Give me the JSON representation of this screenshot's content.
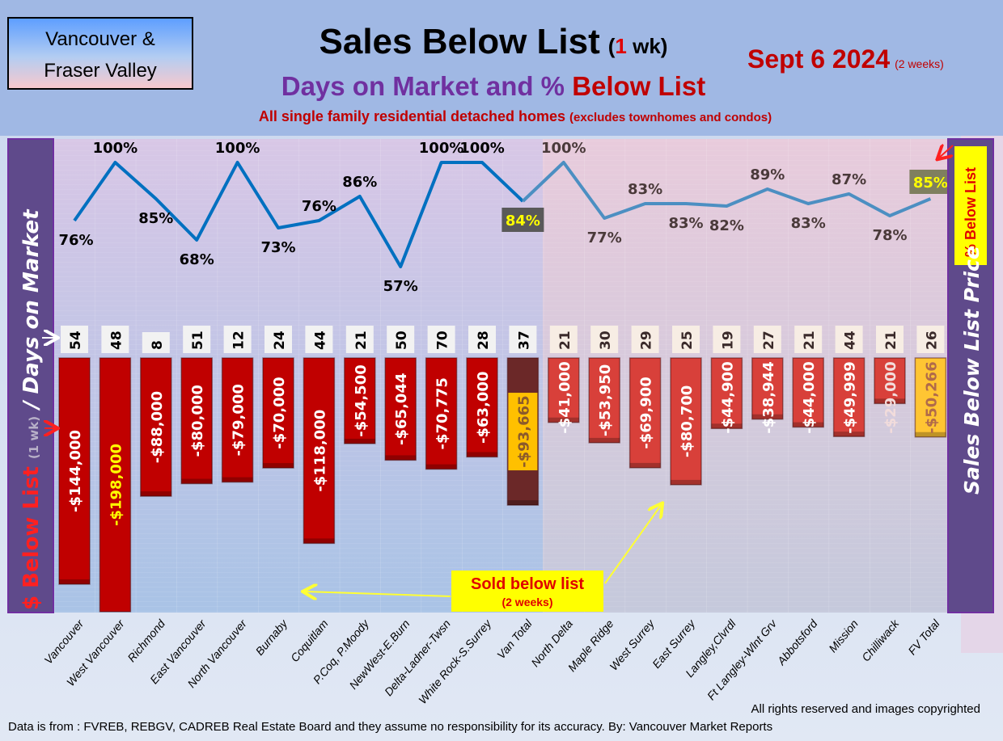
{
  "header": {
    "region_line1": "Vancouver &",
    "region_line2": "Fraser Valley",
    "title": "Sales Below List",
    "title_paren_open": "(",
    "title_period_num": "1",
    "title_period_unit": " wk)",
    "date": "Sept 6  2024",
    "date_note": "(2 weeks)",
    "subtitle_part1": "Days on Market and % ",
    "subtitle_part2": "Below List",
    "description_main": "All single family residential detached homes ",
    "description_note": "(excludes townhomes and condos)"
  },
  "left_axis": {
    "part1": "$ Below List ",
    "part2": "(1 wk)",
    "part3": " / Days on Market"
  },
  "right_axis": {
    "title": "Sales Below List Price",
    "pct_label": "% Below List"
  },
  "callout": {
    "line1": "Sold below list",
    "line2": "(2 weeks)"
  },
  "footer": {
    "copyright": "All rights reserved and  images copyrighted",
    "source": "Data is from : FVREB, REBGV, CADREB Real Estate Board and they assume no responsibility for its accuracy. By: Vancouver Market Reports"
  },
  "colors": {
    "van_bar": "#c00000",
    "fv_bar": "#d8403a",
    "van_total_bar": "#6b2828",
    "fv_total_bar": "#ffc533",
    "line": "#0070c0",
    "band": "#5f4a8b"
  },
  "chart_data": {
    "type": "bar+line",
    "title": "Sales Below List (1 wk)",
    "subtitle": "Days on Market and % Below List",
    "categories": [
      "Vancouver",
      "West Vancouver",
      "Richmond",
      "East Vancouver",
      "North Vancouver",
      "Burnaby",
      "Coquitlam",
      "P.Coq, P.Moody",
      "NewWest-E.Burn",
      "Delta-Ladner-Twsn",
      "White Rock-S.Surrey",
      "Van Total",
      "North Delta",
      "Maple Ridge",
      "West Surrey",
      "East Surrey",
      "Langley,Clvrdl",
      "Ft Langley-Wlnt Grv",
      "Abbotsford",
      "Mission",
      "Chilliwack",
      "FV Total"
    ],
    "groups": [
      "van",
      "van",
      "van",
      "van",
      "van",
      "van",
      "van",
      "van",
      "van",
      "van",
      "van",
      "van_total",
      "fv",
      "fv",
      "fv",
      "fv",
      "fv",
      "fv",
      "fv",
      "fv",
      "fv",
      "fv_total"
    ],
    "series": [
      {
        "name": "$ Below List",
        "type": "bar",
        "values": [
          -144000,
          -198000,
          -88000,
          -80000,
          -79000,
          -70000,
          -118000,
          -54500,
          -65044,
          -70775,
          -63000,
          -93665,
          -41000,
          -53950,
          -69900,
          -80700,
          -44900,
          -38944,
          -44000,
          -49999,
          -29000,
          -50266
        ]
      },
      {
        "name": "Days on Market",
        "type": "label",
        "values": [
          54,
          48,
          8,
          51,
          12,
          24,
          44,
          21,
          50,
          70,
          28,
          37,
          21,
          30,
          29,
          25,
          19,
          27,
          21,
          44,
          21,
          26
        ]
      },
      {
        "name": "% Below List",
        "type": "line",
        "unit": "%",
        "values": [
          76,
          100,
          85,
          68,
          100,
          73,
          76,
          86,
          57,
          100,
          100,
          84,
          100,
          77,
          83,
          83,
          82,
          89,
          83,
          87,
          78,
          85
        ]
      }
    ],
    "grid": true,
    "legend": "none"
  }
}
